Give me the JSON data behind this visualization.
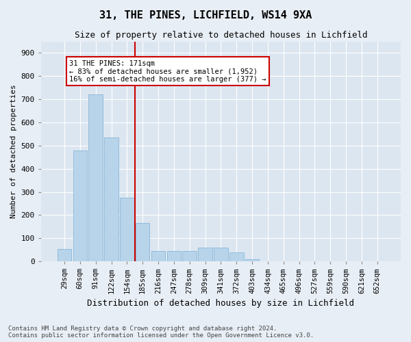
{
  "title1": "31, THE PINES, LICHFIELD, WS14 9XA",
  "title2": "Size of property relative to detached houses in Lichfield",
  "xlabel": "Distribution of detached houses by size in Lichfield",
  "ylabel": "Number of detached properties",
  "footnote1": "Contains HM Land Registry data © Crown copyright and database right 2024.",
  "footnote2": "Contains public sector information licensed under the Open Government Licence v3.0.",
  "categories": [
    "29sqm",
    "60sqm",
    "91sqm",
    "122sqm",
    "154sqm",
    "185sqm",
    "216sqm",
    "247sqm",
    "278sqm",
    "309sqm",
    "341sqm",
    "372sqm",
    "403sqm",
    "434sqm",
    "465sqm",
    "496sqm",
    "527sqm",
    "559sqm",
    "590sqm",
    "621sqm",
    "652sqm"
  ],
  "values": [
    55,
    480,
    720,
    535,
    275,
    165,
    45,
    45,
    45,
    60,
    60,
    40,
    10,
    0,
    0,
    0,
    0,
    0,
    0,
    0,
    0
  ],
  "bar_color": "#b8d4ea",
  "bar_edge_color": "#7aafd4",
  "property_line_x": 4.5,
  "property_line_color": "#cc0000",
  "annotation_text": "31 THE PINES: 171sqm\n← 83% of detached houses are smaller (1,952)\n16% of semi-detached houses are larger (377) →",
  "annotation_box_color": "#cc0000",
  "ylim": [
    0,
    950
  ],
  "yticks": [
    0,
    100,
    200,
    300,
    400,
    500,
    600,
    700,
    800,
    900
  ],
  "background_color": "#e8eef5",
  "plot_bg_color": "#dce6f0",
  "title1_fontsize": 11,
  "title2_fontsize": 9,
  "xlabel_fontsize": 9,
  "ylabel_fontsize": 8,
  "tick_fontsize": 8,
  "footnote_fontsize": 6.5
}
